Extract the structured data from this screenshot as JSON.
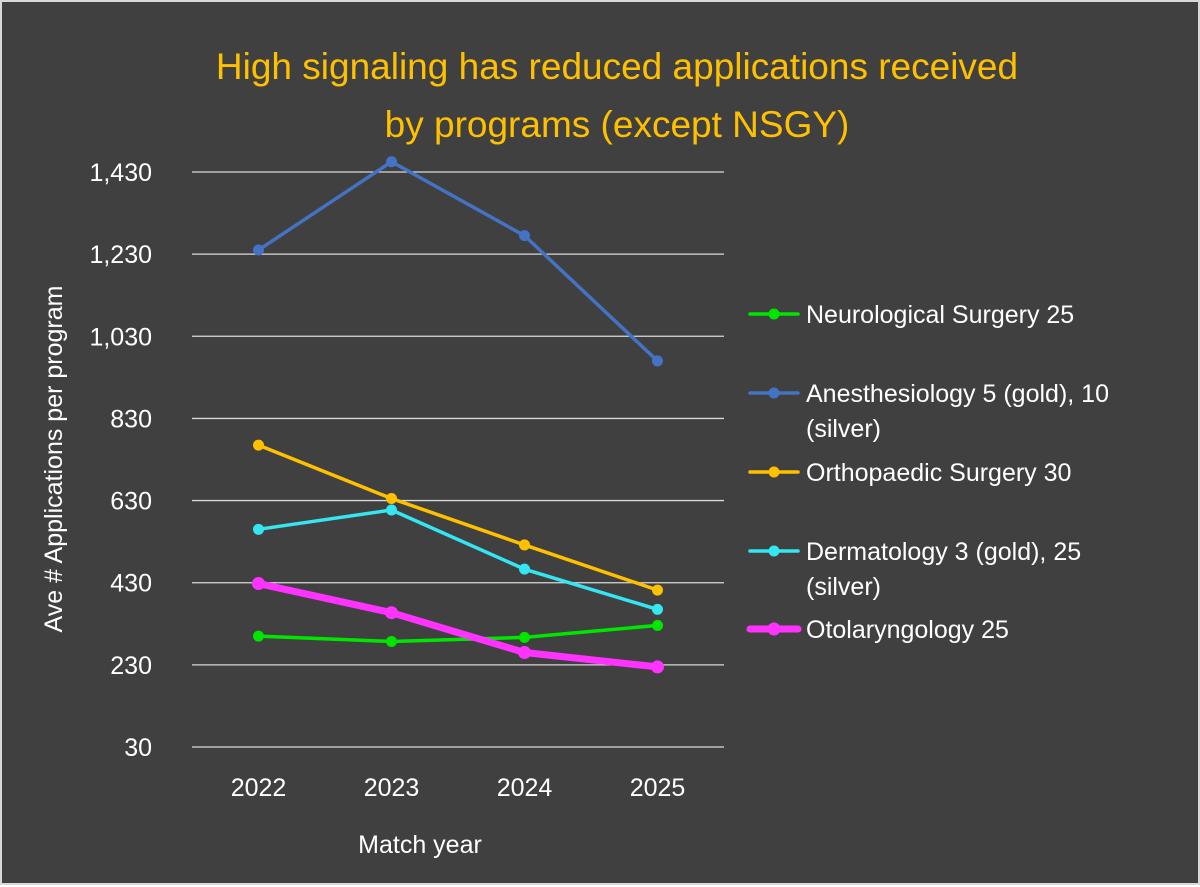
{
  "chart_data": {
    "type": "line",
    "title": "High signaling has reduced applications received by programs (except NSGY)",
    "title_lines": [
      "High signaling has reduced applications received",
      "by programs (except NSGY)"
    ],
    "xlabel": "Match year",
    "ylabel": "Ave # Applications per program",
    "categories": [
      "2022",
      "2023",
      "2024",
      "2025"
    ],
    "ylim": [
      30,
      1430
    ],
    "yticks": [
      30,
      230,
      430,
      630,
      830,
      1030,
      1230,
      1430
    ],
    "ytick_labels": [
      "30",
      "230",
      "430",
      "630",
      "830",
      "1,030",
      "1,230",
      "1,430"
    ],
    "grid": true,
    "legend_position": "right",
    "series": [
      {
        "name": "Neurological Surgery  25",
        "legend_lines": [
          "Neurological Surgery  25"
        ],
        "color": "#00e600",
        "values": [
          300,
          287,
          297,
          326
        ]
      },
      {
        "name": "Anesthesiology 5 (gold), 10 (silver)",
        "legend_lines": [
          "Anesthesiology 5 (gold), 10",
          "(silver)"
        ],
        "color": "#4472c4",
        "values": [
          1240,
          1455,
          1275,
          970
        ]
      },
      {
        "name": "Orthopaedic Surgery  30",
        "legend_lines": [
          "Orthopaedic Surgery  30"
        ],
        "color": "#ffc000",
        "values": [
          765,
          635,
          522,
          412
        ]
      },
      {
        "name": "Dermatology  3 (gold), 25 (silver)",
        "legend_lines": [
          "Dermatology  3 (gold), 25",
          "(silver)"
        ],
        "color": "#33e6f2",
        "values": [
          560,
          607,
          463,
          365
        ]
      },
      {
        "name": "Otolaryngology  25",
        "legend_lines": [
          "Otolaryngology  25"
        ],
        "color": "#ff33ff",
        "values": [
          428,
          357,
          260,
          225
        ],
        "emphasis": true
      }
    ]
  }
}
